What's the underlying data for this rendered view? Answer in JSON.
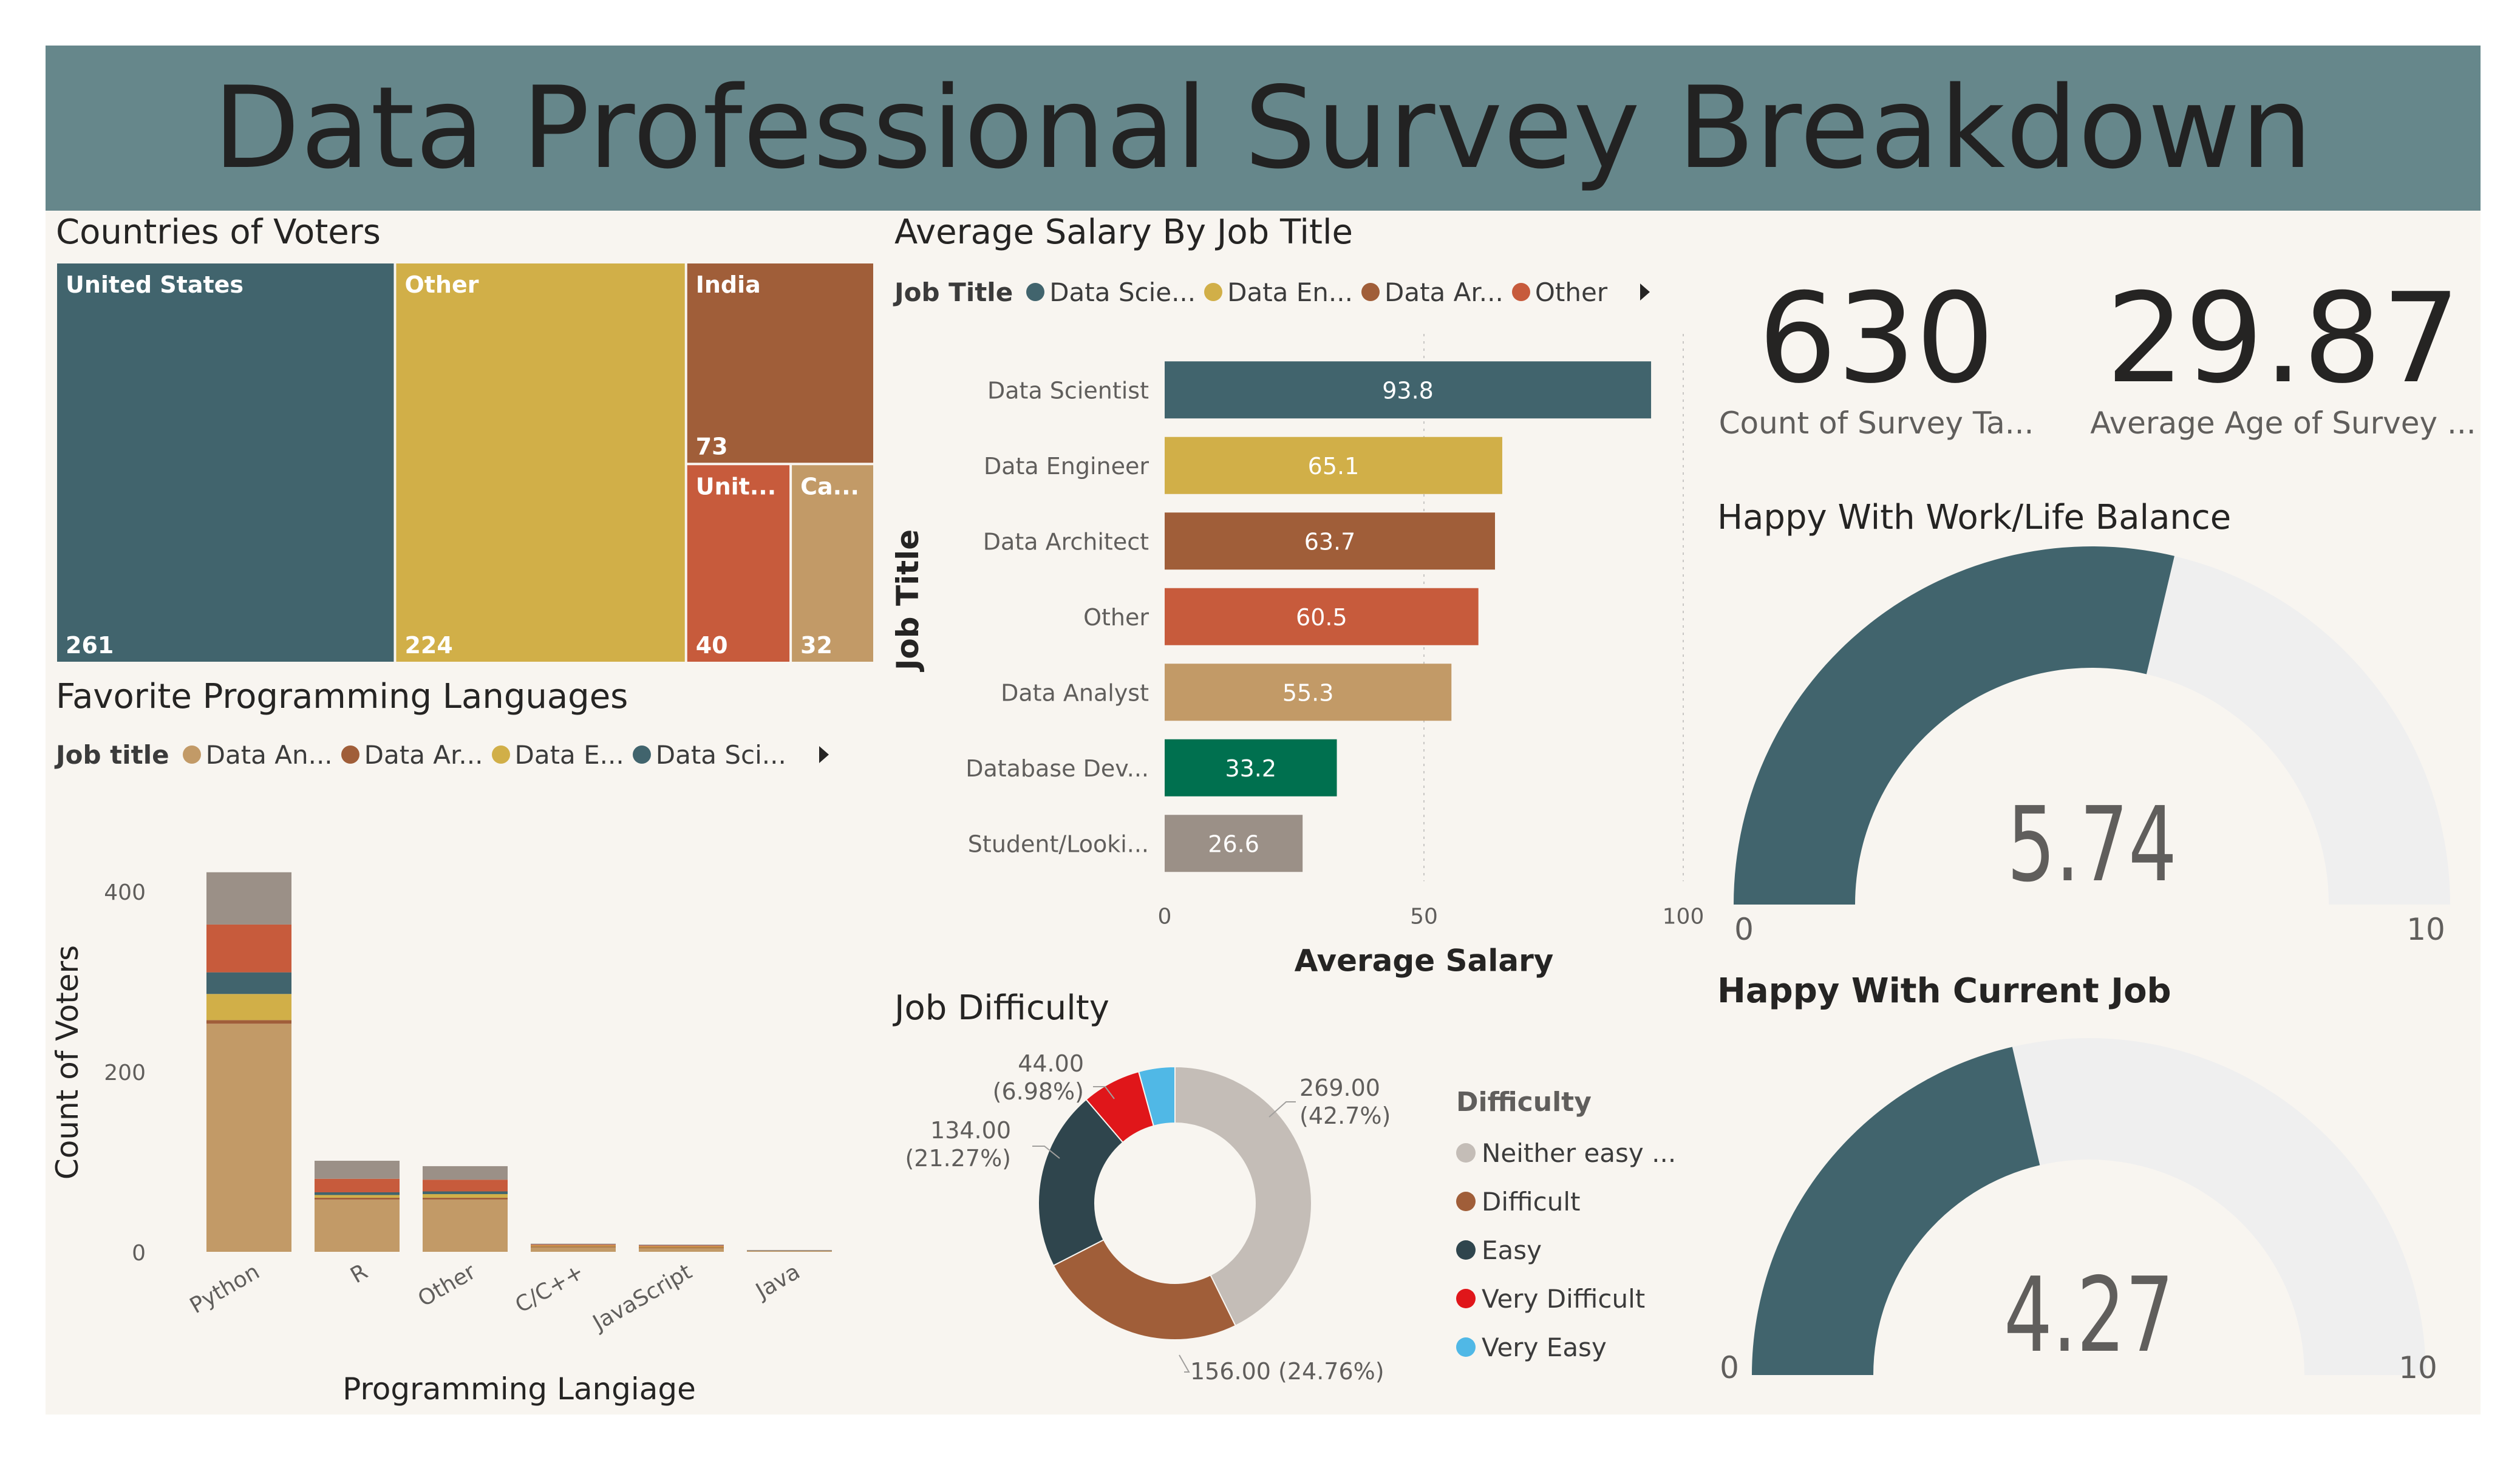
{
  "header": {
    "title": "Data Professional Survey Breakdown"
  },
  "colors": {
    "teal": "#41646d",
    "gold": "#d1af48",
    "brown": "#a05e39",
    "orange": "#c75b3c",
    "tan": "#c29a67",
    "green": "#00704f",
    "gray": "#9b9087",
    "ltgray": "#c4bdb7",
    "dark": "#2f454d",
    "red": "#e0161a",
    "sky": "#50b8e6",
    "track": "#efefef"
  },
  "treemap": {
    "title": "Countries of Voters",
    "chart_data": {
      "type": "treemap",
      "items": [
        {
          "name": "United States",
          "label": "United States",
          "value": 261,
          "color": "#41646d"
        },
        {
          "name": "Other",
          "label": "Other",
          "value": 224,
          "color": "#d1af48"
        },
        {
          "name": "India",
          "label": "India",
          "value": 73,
          "color": "#a05e39"
        },
        {
          "name": "United Kingdom",
          "label": "Unit...",
          "value": 40,
          "color": "#c75b3c"
        },
        {
          "name": "Canada",
          "label": "Ca...",
          "value": 32,
          "color": "#c29a67"
        }
      ]
    }
  },
  "salary": {
    "title": "Average Salary By Job Title",
    "legend": {
      "title": "Job Title",
      "items": [
        {
          "label": "Data Scie...",
          "color": "#41646d"
        },
        {
          "label": "Data En...",
          "color": "#d1af48"
        },
        {
          "label": "Data Ar...",
          "color": "#a05e39"
        },
        {
          "label": "Other",
          "color": "#c75b3c"
        }
      ]
    },
    "chart_data": {
      "type": "bar",
      "orientation": "horizontal",
      "categories": [
        "Data Scientist",
        "Data Engineer",
        "Data Architect",
        "Other",
        "Data Analyst",
        "Database Dev...",
        "Student/Looki..."
      ],
      "values": [
        93.8,
        65.1,
        63.7,
        60.5,
        55.3,
        33.2,
        26.6
      ],
      "value_labels": [
        "93.8",
        "65.1",
        "63.7",
        "60.5",
        "55.3",
        "33.2",
        "26.6"
      ],
      "colors": [
        "#41646d",
        "#d1af48",
        "#a05e39",
        "#c75b3c",
        "#c29a67",
        "#00704f",
        "#9b9087"
      ],
      "xlabel": "Average Salary",
      "ylabel": "Job Title",
      "xlim": [
        0,
        100
      ],
      "xticks": [
        0,
        50,
        100
      ],
      "xtick_labels": [
        "0",
        "50",
        "100"
      ],
      "grid": true
    }
  },
  "cards": [
    {
      "value": "630",
      "label": "Count of Survey Ta..."
    },
    {
      "value": "29.87",
      "label": "Average Age of Survey ..."
    }
  ],
  "gauge1": {
    "title": "Happy With Work/Life Balance",
    "chart_data": {
      "type": "gauge",
      "value": 5.74,
      "min": 0,
      "max": 10,
      "value_label": "5.74",
      "min_label": "0",
      "max_label": "10"
    }
  },
  "gauge2": {
    "title": "Happy With Current Job",
    "chart_data": {
      "type": "gauge",
      "value": 4.27,
      "min": 0,
      "max": 10,
      "value_label": "4.27",
      "min_label": "0",
      "max_label": "10"
    }
  },
  "languages": {
    "title": "Favorite Programming Languages",
    "legend": {
      "title": "Job title",
      "items": [
        {
          "label": "Data An...",
          "color": "#c29a67"
        },
        {
          "label": "Data Ar...",
          "color": "#a05e39"
        },
        {
          "label": "Data E...",
          "color": "#d1af48"
        },
        {
          "label": "Data Sci...",
          "color": "#41646d"
        }
      ]
    },
    "chart_data": {
      "type": "bar",
      "stacked": true,
      "categories": [
        "Python",
        "R",
        "Other",
        "C/C++",
        "JavaScript",
        "Java"
      ],
      "series": [
        {
          "name": "Data Analyst",
          "color": "#c29a67",
          "values": [
            253,
            58,
            58,
            5,
            4,
            1
          ]
        },
        {
          "name": "Data Architect",
          "color": "#a05e39",
          "values": [
            4,
            2,
            2,
            1,
            1,
            0
          ]
        },
        {
          "name": "Data Engineer",
          "color": "#d1af48",
          "values": [
            29,
            3,
            4,
            1,
            1,
            0
          ]
        },
        {
          "name": "Data Scientist",
          "color": "#41646d",
          "values": [
            24,
            3,
            3,
            0,
            0,
            0
          ]
        },
        {
          "name": "Other",
          "color": "#c75b3c",
          "values": [
            53,
            15,
            13,
            1,
            1,
            0
          ]
        },
        {
          "name": "Student/Looking",
          "color": "#9b9087",
          "values": [
            58,
            20,
            15,
            1,
            1,
            1
          ]
        }
      ],
      "xlabel": "Programming Langiage",
      "ylabel": "Count of Voters",
      "ylim": [
        0,
        430
      ],
      "yticks": [
        0,
        200,
        400
      ],
      "ytick_labels": [
        "0",
        "200",
        "400"
      ]
    }
  },
  "difficulty": {
    "title": "Job Difficulty",
    "legend": {
      "title": "Difficulty",
      "items": [
        {
          "label": "Neither easy ...",
          "color": "#c4bdb7"
        },
        {
          "label": "Difficult",
          "color": "#a05e39"
        },
        {
          "label": "Easy",
          "color": "#2f454d"
        },
        {
          "label": "Very Difficult",
          "color": "#e0161a"
        },
        {
          "label": "Very Easy",
          "color": "#50b8e6"
        }
      ]
    },
    "chart_data": {
      "type": "pie",
      "donut": true,
      "slices": [
        {
          "name": "Neither easy nor difficult",
          "value": 269,
          "percent": 42.7,
          "label": [
            "269.00",
            "(42.7%)"
          ],
          "color": "#c4bdb7"
        },
        {
          "name": "Difficult",
          "value": 156,
          "percent": 24.76,
          "label": [
            "156.00 (24.76%)"
          ],
          "color": "#a05e39"
        },
        {
          "name": "Easy",
          "value": 134,
          "percent": 21.27,
          "label": [
            "134.00",
            "(21.27%)"
          ],
          "color": "#2f454d"
        },
        {
          "name": "Very Difficult",
          "value": 44,
          "percent": 6.98,
          "label": [
            "44.00",
            "(6.98%)"
          ],
          "color": "#e0161a"
        },
        {
          "name": "Very Easy",
          "value": 27,
          "percent": 4.29,
          "label": [],
          "color": "#50b8e6"
        }
      ]
    }
  }
}
